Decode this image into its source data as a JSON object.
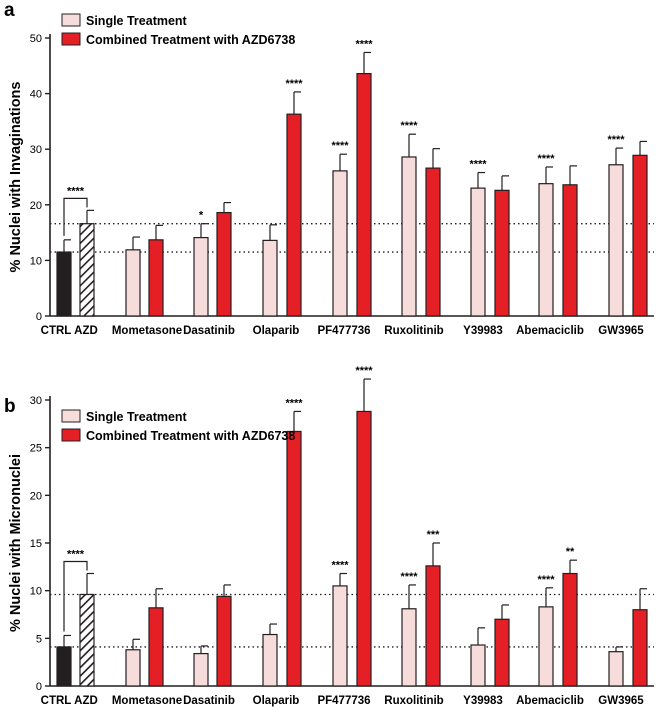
{
  "colors": {
    "single": "#f7dcdc",
    "combined": "#e41f26",
    "ctrl": "#231f20",
    "outline": "#231f20"
  },
  "chart_data": [
    {
      "panel_label": "a",
      "type": "bar",
      "ylabel": "% Nuclei with Invaginations",
      "ylim": [
        0,
        50
      ],
      "yticks": [
        0,
        10,
        20,
        30,
        40,
        50
      ],
      "legend": {
        "single": "Single Treatment",
        "combined": "Combined Treatment with AZD6738",
        "placement": "top-left"
      },
      "controls": [
        {
          "label": "CTRL",
          "value": 11.5,
          "err": 2.2,
          "style": "solid-black"
        },
        {
          "label": "AZD",
          "value": 16.6,
          "err": 2.4,
          "style": "hatched"
        }
      ],
      "control_sig": "****",
      "reference_lines": [
        11.5,
        16.6
      ],
      "categories": [
        "Mometasone",
        "Dasatinib",
        "Olaparib",
        "PF477736",
        "Ruxolitinib",
        "Y39983",
        "Abemaciclib",
        "GW3965"
      ],
      "series": [
        {
          "name": "Single Treatment",
          "values": [
            11.9,
            14.1,
            13.6,
            26.1,
            28.6,
            23.0,
            23.8,
            27.2
          ],
          "errors": [
            2.3,
            2.5,
            2.8,
            3.0,
            4.1,
            2.8,
            3.0,
            3.0
          ],
          "sig": [
            "",
            "*",
            "",
            "****",
            "****",
            "****",
            "****",
            "****"
          ]
        },
        {
          "name": "Combined Treatment with AZD6738",
          "values": [
            13.7,
            18.6,
            36.3,
            43.6,
            26.6,
            22.6,
            23.6,
            28.9
          ],
          "errors": [
            2.6,
            1.8,
            4.0,
            3.8,
            3.5,
            2.6,
            3.4,
            2.5
          ],
          "sig": [
            "",
            "",
            "****",
            "****",
            "",
            "",
            "",
            ""
          ]
        }
      ]
    },
    {
      "panel_label": "b",
      "type": "bar",
      "ylabel": "% Nuclei with Micronuclei",
      "ylim": [
        0,
        30
      ],
      "yticks": [
        0,
        5,
        10,
        15,
        20,
        25,
        30
      ],
      "legend": {
        "single": "Single Treatment",
        "combined": "Combined Treatment with AZD6738",
        "placement": "top-left"
      },
      "controls": [
        {
          "label": "CTRL",
          "value": 4.1,
          "err": 1.2,
          "style": "solid-black"
        },
        {
          "label": "AZD",
          "value": 9.6,
          "err": 2.2,
          "style": "hatched"
        }
      ],
      "control_sig": "****",
      "reference_lines": [
        4.1,
        9.6
      ],
      "categories": [
        "Mometasone",
        "Dasatinib",
        "Olaparib",
        "PF477736",
        "Ruxolitinib",
        "Y39983",
        "Abemaciclib",
        "GW3965"
      ],
      "series": [
        {
          "name": "Single Treatment",
          "values": [
            3.8,
            3.4,
            5.4,
            10.5,
            8.1,
            4.3,
            8.3,
            3.6
          ],
          "errors": [
            1.1,
            0.8,
            1.1,
            1.3,
            2.5,
            1.8,
            2.0,
            0.5
          ],
          "sig": [
            "",
            "",
            "",
            "****",
            "****",
            "",
            "****",
            ""
          ]
        },
        {
          "name": "Combined Treatment with AZD6738",
          "values": [
            8.2,
            9.4,
            26.7,
            28.8,
            12.6,
            7.0,
            11.8,
            8.0
          ],
          "errors": [
            2.0,
            1.2,
            2.1,
            3.4,
            2.4,
            1.5,
            1.4,
            2.2
          ],
          "sig": [
            "",
            "",
            "****",
            "****",
            "***",
            "",
            "**",
            ""
          ]
        }
      ]
    }
  ]
}
